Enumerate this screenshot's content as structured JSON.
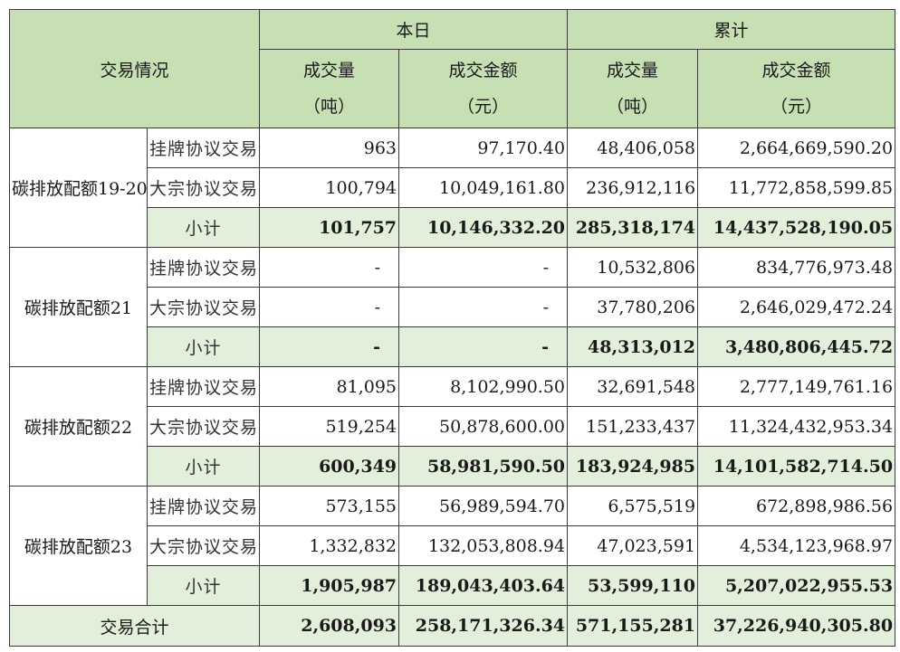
{
  "header": {
    "row_label": "交易情况",
    "today": "本日",
    "cumulative": "累计",
    "volume": "成交量",
    "volume_unit": "（吨）",
    "amount": "成交金额",
    "amount_unit": "（元）"
  },
  "groups": [
    {
      "name": "碳排放配额19-20",
      "rows": [
        {
          "type": "挂牌协议交易",
          "today_vol": "963",
          "today_amt": "97,170.40",
          "cum_vol": "48,406,058",
          "cum_amt": "2,664,669,590.20"
        },
        {
          "type": "大宗协议交易",
          "today_vol": "100,794",
          "today_amt": "10,049,161.80",
          "cum_vol": "236,912,116",
          "cum_amt": "11,772,858,599.85"
        },
        {
          "type": "小计",
          "today_vol": "101,757",
          "today_amt": "10,146,332.20",
          "cum_vol": "285,318,174",
          "cum_amt": "14,437,528,190.05"
        }
      ]
    },
    {
      "name": "碳排放配额21",
      "rows": [
        {
          "type": "挂牌协议交易",
          "today_vol": "-",
          "today_amt": "-",
          "cum_vol": "10,532,806",
          "cum_amt": "834,776,973.48"
        },
        {
          "type": "大宗协议交易",
          "today_vol": "-",
          "today_amt": "-",
          "cum_vol": "37,780,206",
          "cum_amt": "2,646,029,472.24"
        },
        {
          "type": "小计",
          "today_vol": "-",
          "today_amt": "-",
          "cum_vol": "48,313,012",
          "cum_amt": "3,480,806,445.72"
        }
      ]
    },
    {
      "name": "碳排放配额22",
      "rows": [
        {
          "type": "挂牌协议交易",
          "today_vol": "81,095",
          "today_amt": "8,102,990.50",
          "cum_vol": "32,691,548",
          "cum_amt": "2,777,149,761.16"
        },
        {
          "type": "大宗协议交易",
          "today_vol": "519,254",
          "today_amt": "50,878,600.00",
          "cum_vol": "151,233,437",
          "cum_amt": "11,324,432,953.34"
        },
        {
          "type": "小计",
          "today_vol": "600,349",
          "today_amt": "58,981,590.50",
          "cum_vol": "183,924,985",
          "cum_amt": "14,101,582,714.50"
        }
      ]
    },
    {
      "name": "碳排放配额23",
      "rows": [
        {
          "type": "挂牌协议交易",
          "today_vol": "573,155",
          "today_amt": "56,989,594.70",
          "cum_vol": "6,575,519",
          "cum_amt": "672,898,986.56"
        },
        {
          "type": "大宗协议交易",
          "today_vol": "1,332,832",
          "today_amt": "132,053,808.94",
          "cum_vol": "47,023,591",
          "cum_amt": "4,534,123,968.97"
        },
        {
          "type": "小计",
          "today_vol": "1,905,987",
          "today_amt": "189,043,403.64",
          "cum_vol": "53,599,110",
          "cum_amt": "5,207,022,955.53"
        }
      ]
    }
  ],
  "total": {
    "label": "交易合计",
    "today_vol": "2,608,093",
    "today_amt": "258,171,326.34",
    "cum_vol": "571,155,281",
    "cum_amt": "37,226,940,305.80"
  }
}
